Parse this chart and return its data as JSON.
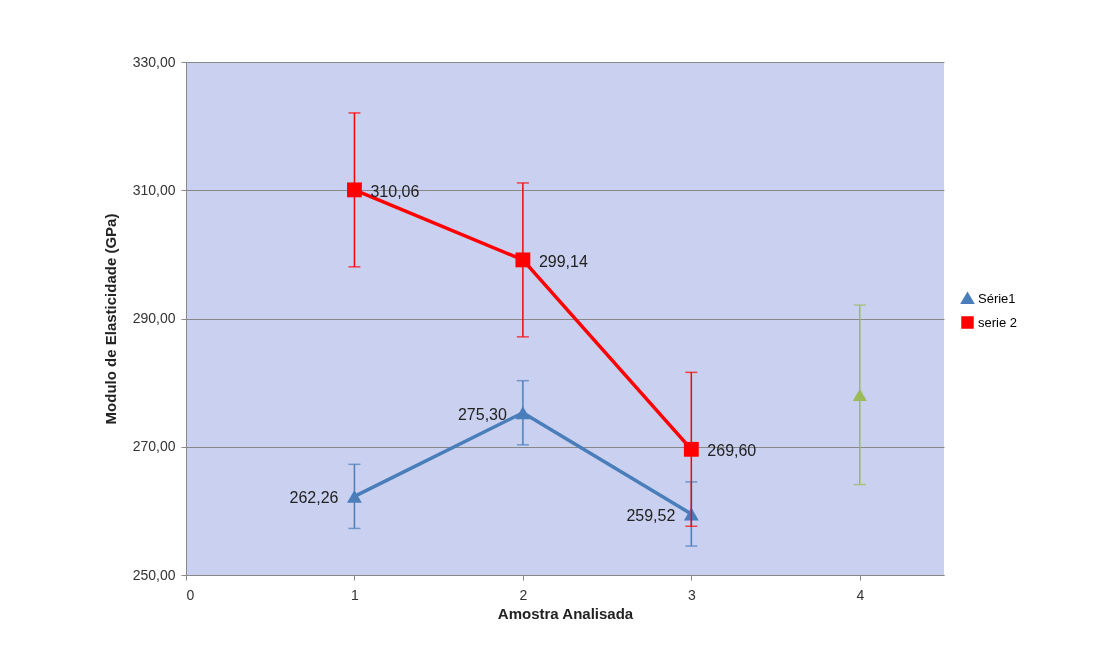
{
  "chart_data": {
    "type": "line",
    "xlabel": "Amostra Analisada",
    "ylabel": "Modulo de Elasticidade  (GPa)",
    "xlim": [
      0,
      4.5
    ],
    "xticks": [
      0,
      1,
      2,
      3,
      4
    ],
    "ylim": [
      250,
      330
    ],
    "yticks": [
      {
        "value": 250,
        "label": "250,00"
      },
      {
        "value": 270,
        "label": "270,00"
      },
      {
        "value": 290,
        "label": "290,00"
      },
      {
        "value": 310,
        "label": "310,00"
      },
      {
        "value": 330,
        "label": "330,00"
      }
    ],
    "grid": "y",
    "legend": "right",
    "series": [
      {
        "name": "Série1",
        "color": "#4a7ebb",
        "marker": "triangle",
        "x": [
          1,
          2,
          3
        ],
        "values": [
          262.26,
          275.3,
          259.52
        ],
        "errors": [
          5,
          5,
          5
        ],
        "value_labels": [
          "262,26",
          "275,30",
          "259,52"
        ]
      },
      {
        "name": "serie 2",
        "color": "#ff0000",
        "marker": "square",
        "x": [
          1,
          2,
          3
        ],
        "values": [
          310.06,
          299.14,
          269.6
        ],
        "errors": [
          12,
          12,
          12
        ],
        "value_labels": [
          "310,06",
          "299,14",
          "269,60"
        ]
      },
      {
        "type": "scatter",
        "color": "#9bbb59",
        "marker": "triangle",
        "x": [
          4
        ],
        "values": [
          278.1
        ],
        "errors": [
          14
        ]
      }
    ]
  }
}
